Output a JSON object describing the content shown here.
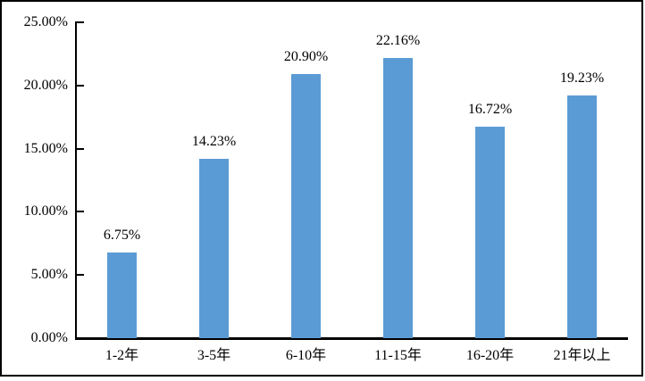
{
  "chart_data": {
    "type": "bar",
    "title": "",
    "xlabel": "",
    "ylabel": "",
    "categories": [
      "1-2年",
      "3-5年",
      "6-10年",
      "11-15年",
      "16-20年",
      "21年以上"
    ],
    "values": [
      6.75,
      14.23,
      20.9,
      22.16,
      16.72,
      19.23
    ],
    "value_labels": [
      "6.75%",
      "14.23%",
      "20.90%",
      "22.16%",
      "16.72%",
      "19.23%"
    ],
    "ylim": [
      0,
      25
    ],
    "y_ticks": [
      0,
      5,
      10,
      15,
      20,
      25
    ],
    "y_tick_labels": [
      "0.00%",
      "5.00%",
      "10.00%",
      "15.00%",
      "20.00%",
      "25.00%"
    ],
    "grid": "off",
    "legend": "none",
    "tick_style": "inside",
    "bar_color": "#5B9BD5",
    "axis_color": "#000000",
    "text_color": "#000000",
    "background_color": "#FFFFFF",
    "border_color": "#000000"
  }
}
